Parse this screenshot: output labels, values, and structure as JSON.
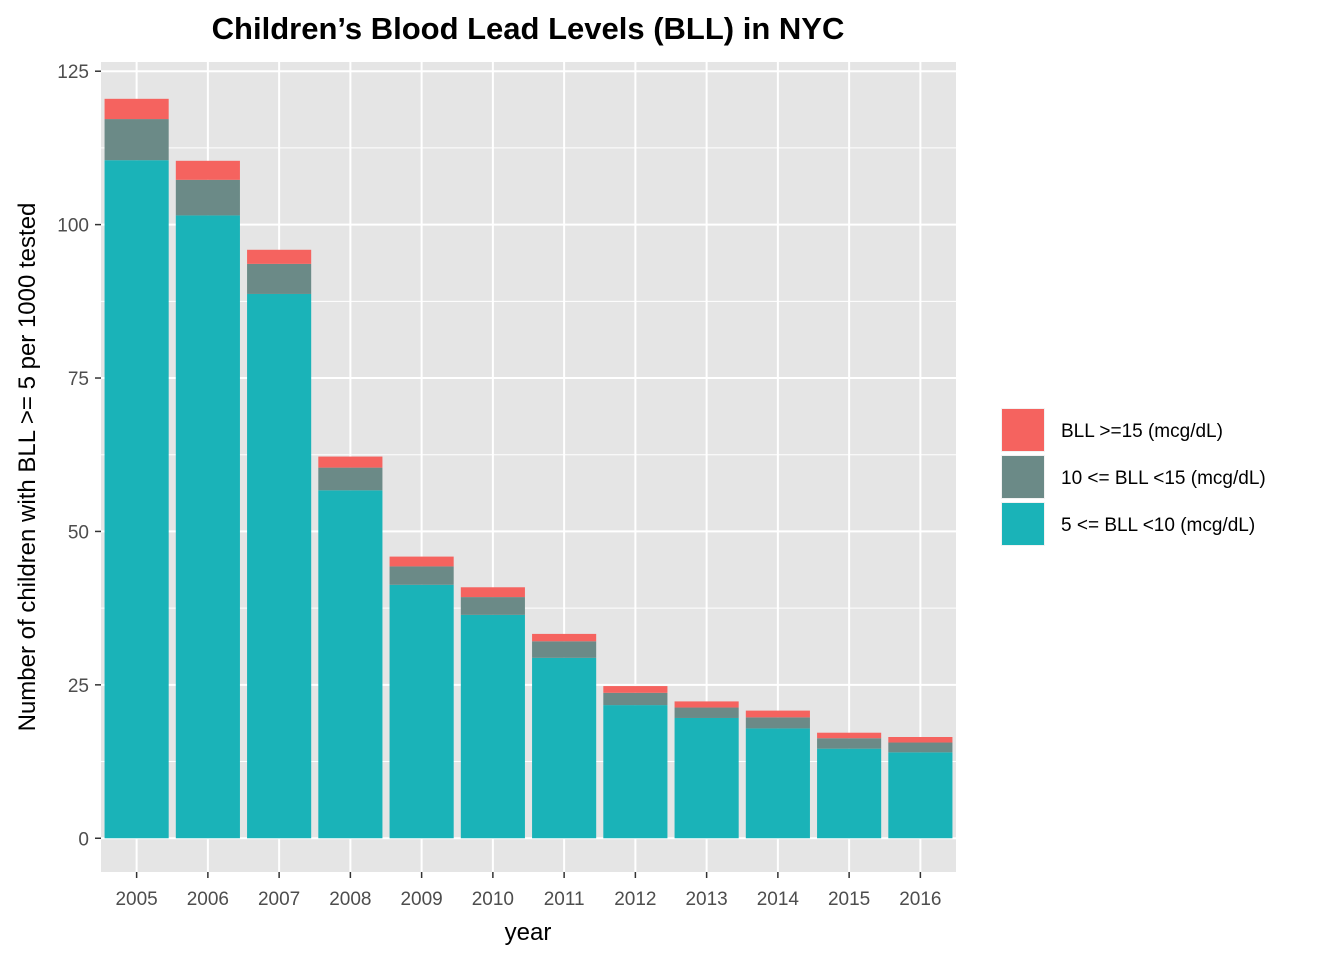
{
  "chart_data": {
    "type": "bar",
    "stacked": true,
    "title": "Children’s Blood Lead Levels (BLL) in NYC",
    "xlabel": "year",
    "ylabel": "Number of children with BLL >= 5 per 1000 tested",
    "categories": [
      "2005",
      "2006",
      "2007",
      "2008",
      "2009",
      "2010",
      "2011",
      "2012",
      "2013",
      "2014",
      "2015",
      "2016"
    ],
    "ylim": [
      -5.5,
      126.5
    ],
    "yticks": [
      0,
      25,
      50,
      75,
      100,
      125
    ],
    "yticks_labels": [
      "0",
      "25",
      "50",
      "75",
      "100",
      "125"
    ],
    "grid": true,
    "legend_position": "right",
    "series": [
      {
        "name": "5 <= BLL <10 (mcg/dL)",
        "color": "#1ab3b8",
        "values": [
          110.5,
          101.5,
          88.7,
          56.7,
          41.3,
          36.4,
          29.4,
          21.7,
          19.6,
          17.9,
          14.6,
          14.0
        ]
      },
      {
        "name": "10 <= BLL <15 (mcg/dL)",
        "color": "#6b8a87",
        "values": [
          6.7,
          5.8,
          4.9,
          3.7,
          3.0,
          2.9,
          2.7,
          2.0,
          1.7,
          1.8,
          1.7,
          1.6
        ]
      },
      {
        "name": "BLL >=15 (mcg/dL)",
        "color": "#f5635f",
        "values": [
          3.3,
          3.1,
          2.3,
          1.8,
          1.6,
          1.6,
          1.2,
          1.1,
          1.0,
          1.1,
          0.9,
          0.9
        ]
      }
    ],
    "legend_order": [
      "BLL >=15 (mcg/dL)",
      "10 <= BLL <15 (mcg/dL)",
      "5 <= BLL <10 (mcg/dL)"
    ]
  },
  "colors": {
    "panel_background": "#e5e5e5",
    "gridline": "#ffffff",
    "tick_text": "#4d4d4d"
  }
}
